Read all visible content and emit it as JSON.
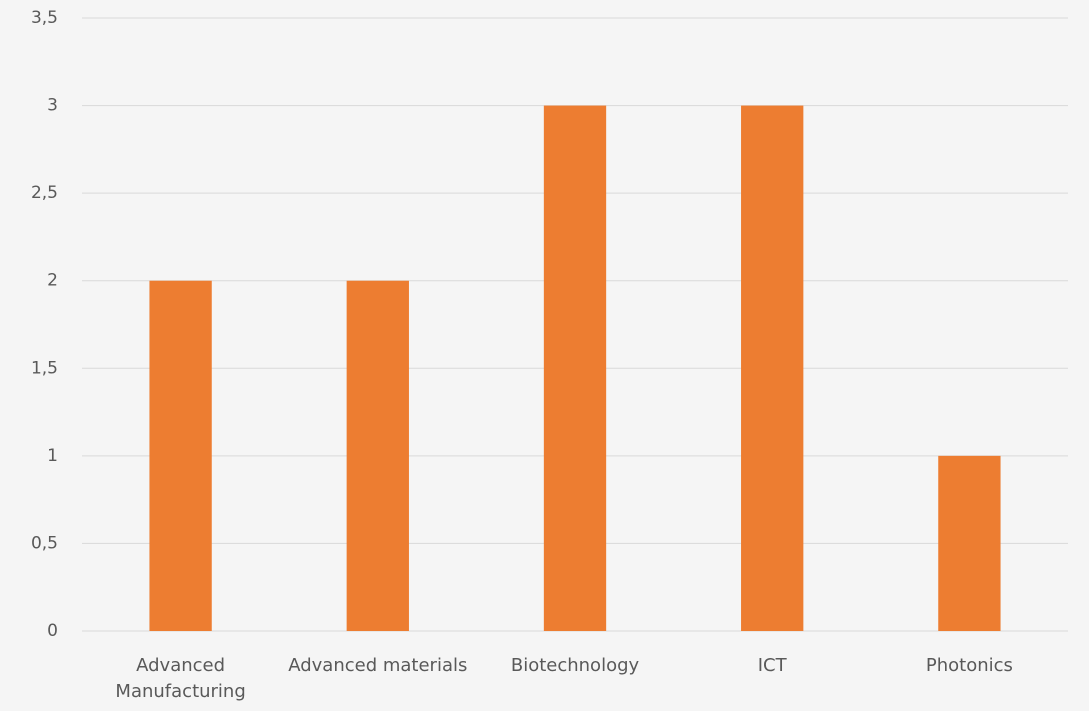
{
  "chart_data": {
    "type": "bar",
    "categories": [
      "Advanced Manufacturing",
      "Advanced materials",
      "Biotechnology",
      "ICT",
      "Photonics"
    ],
    "values": [
      2,
      2,
      3,
      3,
      1
    ],
    "color": "#ed7d31",
    "ylim": [
      0,
      3.5
    ],
    "yticks": [
      0,
      {
        "value": 0.5,
        "label": "0,5"
      },
      1,
      {
        "value": 1.5,
        "label": "1,5"
      },
      2,
      {
        "value": 2.5,
        "label": "2,5"
      },
      3,
      {
        "value": 3.5,
        "label": "3,5"
      }
    ],
    "grid": true
  }
}
